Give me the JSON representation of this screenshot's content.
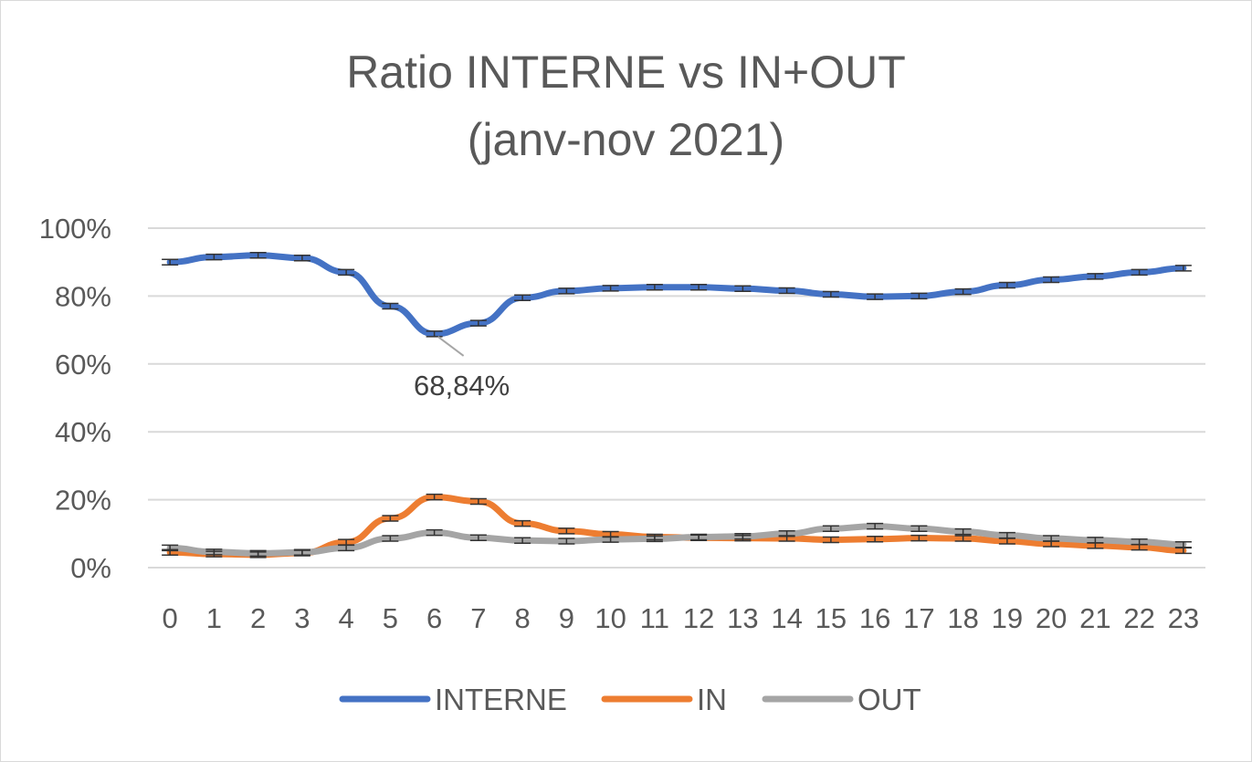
{
  "chart_data": {
    "type": "line",
    "title_lines": [
      "Ratio INTERNE vs IN+OUT",
      "(janv-nov 2021)"
    ],
    "xlabel": "",
    "ylabel": "",
    "ylim": [
      0,
      100
    ],
    "yticks": [
      "0%",
      "20%",
      "40%",
      "60%",
      "80%",
      "100%"
    ],
    "categories": [
      "0",
      "1",
      "2",
      "3",
      "4",
      "5",
      "6",
      "7",
      "8",
      "9",
      "10",
      "11",
      "12",
      "13",
      "14",
      "15",
      "16",
      "17",
      "18",
      "19",
      "20",
      "21",
      "22",
      "23"
    ],
    "series": [
      {
        "name": "INTERNE",
        "color": "#4472c4",
        "values": [
          90,
          91.5,
          92,
          91.2,
          87,
          77,
          68.84,
          72,
          79.5,
          81.5,
          82.3,
          82.6,
          82.6,
          82.2,
          81.6,
          80.5,
          79.8,
          80,
          81.3,
          83.2,
          84.8,
          85.8,
          87,
          88.2
        ]
      },
      {
        "name": "IN",
        "color": "#ed7d31",
        "values": [
          4.5,
          4,
          3.8,
          4.3,
          7.5,
          14.5,
          20.8,
          19.5,
          13,
          10.8,
          9.8,
          9,
          8.8,
          8.7,
          8.6,
          8.2,
          8.4,
          8.7,
          8.6,
          7.8,
          7,
          6.5,
          6,
          5
        ]
      },
      {
        "name": "OUT",
        "color": "#a5a5a5",
        "values": [
          5.8,
          4.6,
          4.2,
          4.5,
          5.8,
          8.6,
          10.3,
          8.8,
          8,
          7.8,
          8.3,
          8.5,
          9,
          9.2,
          10,
          11.5,
          12.2,
          11.5,
          10.6,
          9.5,
          8.6,
          8.1,
          7.6,
          6.8
        ]
      }
    ],
    "annotations": [
      {
        "series": "INTERNE",
        "category": "6",
        "text": "68,84%"
      }
    ],
    "grid": true,
    "legend": "bottom"
  }
}
